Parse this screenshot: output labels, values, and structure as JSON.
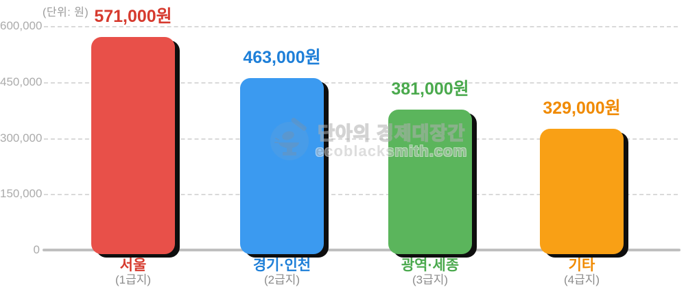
{
  "watermark": {
    "title": "단아의 경제대장간",
    "site": "ecoblacksmith.com",
    "icon": "hammer-anvil-icon"
  },
  "chart_data": {
    "type": "bar",
    "title": "",
    "unit_label": "(단위: 원)",
    "categories": [
      "서울",
      "경기·인천",
      "광역·세종",
      "기타"
    ],
    "subcategories": [
      "(1급지)",
      "(2급지)",
      "(3급지)",
      "(4급지)"
    ],
    "values": [
      571000,
      463000,
      381000,
      329000
    ],
    "value_labels": [
      "571,000원",
      "463,000원",
      "381,000원",
      "329,000원"
    ],
    "bar_colors": [
      "#e85049",
      "#3b9af0",
      "#5bb55c",
      "#f9a015"
    ],
    "text_colors": [
      "#d63a2e",
      "#1e7fd8",
      "#4aa94d",
      "#f08a00"
    ],
    "y_ticks": [
      "600,000",
      "450,000",
      "300,000",
      "150,000",
      "0"
    ],
    "ylim": [
      0,
      600000
    ],
    "grid": "horizontal-dashed",
    "legend": "none"
  }
}
